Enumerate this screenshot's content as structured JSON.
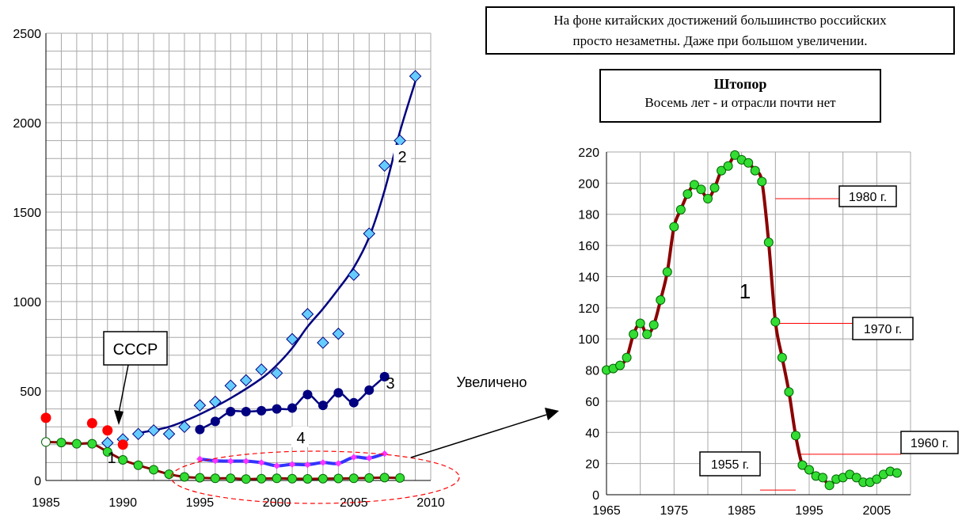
{
  "note": {
    "line1": "На фоне китайских достижений большинство российских",
    "line2": "просто незаметны. Даже при большом увеличении."
  },
  "zoom_title": {
    "title": "Штопор",
    "subtitle": "Восемь лет - и отрасли почти нет"
  },
  "zoom_label": "Увеличено",
  "chart_data": [
    {
      "type": "line",
      "xlim": [
        1985,
        2010
      ],
      "ylim": [
        0,
        2500
      ],
      "x_ticks": [
        1985,
        1990,
        1995,
        2000,
        2005,
        2010
      ],
      "y_ticks": [
        0,
        500,
        1000,
        1500,
        2000,
        2500
      ],
      "grid": true,
      "annotations": [
        {
          "text": "СССР"
        },
        {
          "text": "1"
        },
        {
          "text": "2"
        },
        {
          "text": "3"
        },
        {
          "text": "4"
        }
      ],
      "series": [
        {
          "label": "1",
          "color": "#8b0000",
          "marker": "#33dd33",
          "x": [
            1985,
            1986,
            1987,
            1988,
            1989,
            1990,
            1991,
            1992,
            1993,
            1994,
            1995,
            1996,
            1997,
            1998,
            1999,
            2000,
            2001,
            2002,
            2003,
            2004,
            2005,
            2006,
            2007,
            2008
          ],
          "y": [
            215,
            212,
            205,
            205,
            160,
            115,
            85,
            60,
            35,
            20,
            15,
            12,
            12,
            8,
            10,
            12,
            10,
            9,
            10,
            11,
            12,
            14,
            16,
            14
          ]
        },
        {
          "label": "2",
          "color": "#000080",
          "marker": "#66ccff",
          "x": [
            1989,
            1990,
            1991,
            1992,
            1993,
            1994,
            1995,
            1996,
            1997,
            1998,
            1999,
            2000,
            2001,
            2002,
            2003,
            2004,
            2005,
            2006,
            2007,
            2008,
            2009
          ],
          "y": [
            210,
            230,
            260,
            280,
            260,
            300,
            420,
            440,
            530,
            560,
            620,
            600,
            790,
            930,
            770,
            820,
            1150,
            1380,
            1760,
            1900,
            2260
          ]
        },
        {
          "label": "3",
          "color": "#000080",
          "marker": "#000080",
          "x": [
            1995,
            1996,
            1997,
            1998,
            1999,
            2000,
            2001,
            2002,
            2003,
            2004,
            2005,
            2006,
            2007
          ],
          "y": [
            285,
            330,
            385,
            385,
            390,
            400,
            405,
            480,
            420,
            490,
            435,
            505,
            580
          ]
        },
        {
          "label": "4",
          "color": "#3333ff",
          "marker": "#ff33ff",
          "x": [
            1995,
            1996,
            1997,
            1998,
            1999,
            2000,
            2001,
            2002,
            2003,
            2004,
            2005,
            2006,
            2007
          ],
          "y": [
            120,
            110,
            108,
            108,
            100,
            82,
            90,
            88,
            100,
            95,
            130,
            125,
            150
          ]
        },
        {
          "label": "СССР",
          "color": "#ff0000",
          "marker": "#ff0000",
          "x": [
            1985,
            1988,
            1989,
            1990
          ],
          "y": [
            350,
            320,
            280,
            200
          ]
        }
      ]
    },
    {
      "type": "line",
      "xlim": [
        1965,
        2010
      ],
      "ylim": [
        0,
        220
      ],
      "x_ticks": [
        1965,
        1975,
        1985,
        1995,
        2005
      ],
      "y_ticks": [
        0,
        20,
        40,
        60,
        80,
        100,
        120,
        140,
        160,
        180,
        200,
        220
      ],
      "grid": true,
      "series": [
        {
          "label": "1",
          "color": "#8b0000",
          "marker": "#33dd33",
          "x": [
            1965,
            1966,
            1967,
            1968,
            1969,
            1970,
            1971,
            1972,
            1973,
            1974,
            1975,
            1976,
            1977,
            1978,
            1979,
            1980,
            1981,
            1982,
            1983,
            1984,
            1985,
            1986,
            1987,
            1988,
            1989,
            1990,
            1991,
            1992,
            1993,
            1994,
            1995,
            1996,
            1997,
            1998,
            1999,
            2000,
            2001,
            2002,
            2003,
            2004,
            2005,
            2006,
            2007,
            2008
          ],
          "y": [
            80,
            81,
            83,
            88,
            103,
            110,
            103,
            109,
            125,
            143,
            172,
            183,
            193,
            199,
            196,
            190,
            197,
            208,
            211,
            218,
            215,
            213,
            208,
            201,
            162,
            111,
            88,
            66,
            38,
            19,
            16,
            12,
            11,
            6,
            10,
            11,
            13,
            11,
            8,
            8,
            10,
            13,
            15,
            14
          ]
        }
      ],
      "annotations": [
        {
          "text": "1"
        },
        {
          "text": "1980 г.",
          "x": 1990,
          "y": 190
        },
        {
          "text": "1970 г.",
          "x": 1990,
          "y": 110
        },
        {
          "text": "1960 г.",
          "x": 1993.5,
          "y": 26
        },
        {
          "text": "1955 г.",
          "x": 1993,
          "y": 3
        }
      ]
    }
  ]
}
